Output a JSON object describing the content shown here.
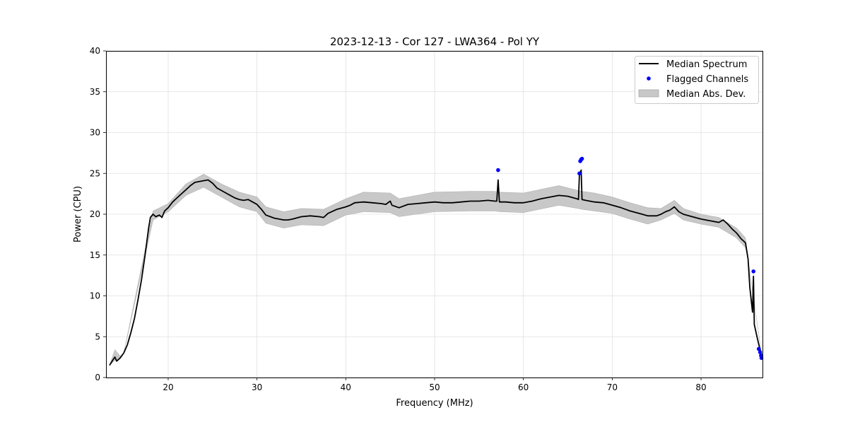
{
  "chart_data": {
    "type": "line",
    "title": "2023-12-13 - Cor 127 - LWA364 - Pol YY",
    "xlabel": "Frequency (MHz)",
    "ylabel": "Power (CPU)",
    "xlim": [
      13,
      87
    ],
    "ylim": [
      0,
      40
    ],
    "xticks": [
      20,
      30,
      40,
      50,
      60,
      70,
      80
    ],
    "yticks": [
      0,
      5,
      10,
      15,
      20,
      25,
      30,
      35,
      40
    ],
    "grid": true,
    "legend_position": "top-right",
    "legend": [
      {
        "label": "Median Spectrum",
        "kind": "line",
        "color": "#000000"
      },
      {
        "label": "Flagged Channels",
        "kind": "marker",
        "color": "#0000ff"
      },
      {
        "label": "Median Abs. Dev.",
        "kind": "patch",
        "color": "#c8c8c8"
      }
    ],
    "series": [
      {
        "name": "Median Spectrum",
        "color": "#000000",
        "points": [
          [
            13.4,
            1.5
          ],
          [
            13.8,
            2.2
          ],
          [
            14.0,
            2.5
          ],
          [
            14.2,
            2.0
          ],
          [
            14.6,
            2.4
          ],
          [
            15.0,
            3.0
          ],
          [
            15.4,
            4.0
          ],
          [
            15.8,
            5.5
          ],
          [
            16.2,
            7.2
          ],
          [
            16.6,
            9.5
          ],
          [
            17.0,
            12.0
          ],
          [
            17.4,
            15.0
          ],
          [
            17.8,
            18.3
          ],
          [
            18.0,
            19.6
          ],
          [
            18.3,
            20.0
          ],
          [
            18.6,
            19.7
          ],
          [
            19.0,
            19.9
          ],
          [
            19.3,
            19.6
          ],
          [
            19.6,
            20.4
          ],
          [
            20.0,
            20.8
          ],
          [
            20.5,
            21.5
          ],
          [
            21.0,
            22.0
          ],
          [
            21.5,
            22.5
          ],
          [
            22.0,
            23.0
          ],
          [
            22.5,
            23.5
          ],
          [
            23.0,
            23.9
          ],
          [
            23.5,
            24.0
          ],
          [
            24.0,
            24.1
          ],
          [
            24.5,
            24.2
          ],
          [
            25.0,
            23.8
          ],
          [
            25.5,
            23.2
          ],
          [
            26.0,
            22.9
          ],
          [
            26.5,
            22.6
          ],
          [
            27.0,
            22.3
          ],
          [
            27.5,
            22.0
          ],
          [
            28.0,
            21.8
          ],
          [
            28.5,
            21.7
          ],
          [
            29.0,
            21.8
          ],
          [
            29.5,
            21.5
          ],
          [
            30.0,
            21.2
          ],
          [
            30.5,
            20.6
          ],
          [
            31.0,
            19.9
          ],
          [
            31.5,
            19.7
          ],
          [
            32.0,
            19.5
          ],
          [
            32.5,
            19.4
          ],
          [
            33.0,
            19.3
          ],
          [
            33.5,
            19.3
          ],
          [
            34.0,
            19.4
          ],
          [
            35.0,
            19.7
          ],
          [
            36.0,
            19.8
          ],
          [
            37.0,
            19.7
          ],
          [
            37.5,
            19.6
          ],
          [
            38.0,
            20.1
          ],
          [
            39.0,
            20.6
          ],
          [
            40.0,
            20.9
          ],
          [
            40.5,
            21.1
          ],
          [
            41.0,
            21.4
          ],
          [
            42.0,
            21.5
          ],
          [
            43.0,
            21.4
          ],
          [
            44.0,
            21.3
          ],
          [
            44.5,
            21.2
          ],
          [
            45.0,
            21.6
          ],
          [
            45.2,
            21.1
          ],
          [
            46.0,
            20.8
          ],
          [
            47.0,
            21.2
          ],
          [
            48.0,
            21.3
          ],
          [
            49.0,
            21.4
          ],
          [
            50.0,
            21.5
          ],
          [
            51.0,
            21.4
          ],
          [
            52.0,
            21.4
          ],
          [
            53.0,
            21.5
          ],
          [
            54.0,
            21.6
          ],
          [
            55.0,
            21.6
          ],
          [
            56.0,
            21.7
          ],
          [
            56.8,
            21.6
          ],
          [
            57.0,
            21.6
          ],
          [
            57.15,
            24.2
          ],
          [
            57.3,
            21.5
          ],
          [
            58.0,
            21.5
          ],
          [
            59.0,
            21.4
          ],
          [
            60.0,
            21.4
          ],
          [
            61.0,
            21.6
          ],
          [
            62.0,
            21.9
          ],
          [
            63.0,
            22.1
          ],
          [
            64.0,
            22.3
          ],
          [
            65.0,
            22.2
          ],
          [
            66.0,
            21.9
          ],
          [
            66.2,
            21.8
          ],
          [
            66.3,
            24.8
          ],
          [
            66.5,
            25.4
          ],
          [
            66.6,
            21.8
          ],
          [
            67.0,
            21.7
          ],
          [
            68.0,
            21.5
          ],
          [
            69.0,
            21.4
          ],
          [
            70.0,
            21.1
          ],
          [
            71.0,
            20.8
          ],
          [
            72.0,
            20.4
          ],
          [
            73.0,
            20.1
          ],
          [
            74.0,
            19.8
          ],
          [
            75.0,
            19.8
          ],
          [
            75.5,
            20.0
          ],
          [
            76.0,
            20.3
          ],
          [
            76.5,
            20.5
          ],
          [
            77.0,
            20.9
          ],
          [
            77.5,
            20.3
          ],
          [
            78.0,
            20.0
          ],
          [
            79.0,
            19.7
          ],
          [
            80.0,
            19.4
          ],
          [
            81.0,
            19.2
          ],
          [
            82.0,
            19.0
          ],
          [
            82.5,
            19.3
          ],
          [
            83.0,
            18.8
          ],
          [
            83.5,
            18.2
          ],
          [
            84.0,
            17.7
          ],
          [
            84.5,
            17.0
          ],
          [
            85.0,
            16.5
          ],
          [
            85.3,
            14.5
          ],
          [
            85.5,
            11.0
          ],
          [
            85.8,
            8.0
          ],
          [
            85.9,
            12.4
          ],
          [
            86.0,
            6.5
          ],
          [
            86.3,
            5.0
          ],
          [
            86.6,
            3.6
          ],
          [
            86.8,
            2.9
          ]
        ]
      }
    ],
    "band": {
      "name": "Median Abs. Dev.",
      "color": "#c8c8c8",
      "points": [
        [
          13.4,
          1.5,
          1.5
        ],
        [
          14.0,
          2.1,
          3.4
        ],
        [
          14.6,
          2.3,
          2.6
        ],
        [
          15.0,
          3.0,
          3.0
        ],
        [
          18.3,
          19.3,
          20.4
        ],
        [
          20.0,
          20.3,
          21.3
        ],
        [
          22.0,
          22.3,
          23.7
        ],
        [
          24.0,
          23.3,
          24.9
        ],
        [
          26.0,
          22.1,
          23.7
        ],
        [
          28.0,
          20.9,
          22.7
        ],
        [
          30.0,
          20.3,
          22.1
        ],
        [
          31.0,
          18.9,
          20.9
        ],
        [
          33.0,
          18.3,
          20.3
        ],
        [
          35.0,
          18.7,
          20.7
        ],
        [
          37.5,
          18.6,
          20.6
        ],
        [
          40.0,
          19.9,
          21.9
        ],
        [
          42.0,
          20.3,
          22.7
        ],
        [
          45.0,
          20.2,
          22.6
        ],
        [
          46.0,
          19.7,
          21.9
        ],
        [
          50.0,
          20.3,
          22.7
        ],
        [
          54.0,
          20.4,
          22.8
        ],
        [
          56.8,
          20.4,
          22.8
        ],
        [
          57.3,
          20.3,
          22.7
        ],
        [
          60.0,
          20.2,
          22.6
        ],
        [
          64.0,
          21.1,
          23.5
        ],
        [
          66.2,
          20.7,
          22.9
        ],
        [
          66.6,
          20.6,
          22.8
        ],
        [
          68.0,
          20.4,
          22.6
        ],
        [
          70.0,
          20.1,
          22.1
        ],
        [
          72.0,
          19.4,
          21.4
        ],
        [
          74.0,
          18.8,
          20.8
        ],
        [
          75.5,
          19.3,
          20.7
        ],
        [
          77.0,
          20.1,
          21.7
        ],
        [
          78.0,
          19.3,
          20.7
        ],
        [
          80.0,
          18.8,
          20.0
        ],
        [
          82.0,
          18.4,
          19.6
        ],
        [
          84.0,
          17.1,
          18.3
        ],
        [
          85.0,
          15.9,
          17.1
        ],
        [
          85.3,
          14.5,
          14.5
        ],
        [
          86.8,
          2.9,
          2.9
        ]
      ]
    },
    "flagged_channels": {
      "name": "Flagged Channels",
      "color": "#0000ff",
      "points": [
        [
          57.15,
          25.4
        ],
        [
          66.3,
          25.0
        ],
        [
          66.4,
          26.5
        ],
        [
          66.5,
          26.7
        ],
        [
          66.6,
          26.8
        ],
        [
          85.9,
          13.0
        ],
        [
          86.5,
          3.5
        ],
        [
          86.65,
          3.1
        ],
        [
          86.75,
          2.7
        ],
        [
          86.8,
          2.4
        ]
      ]
    }
  }
}
